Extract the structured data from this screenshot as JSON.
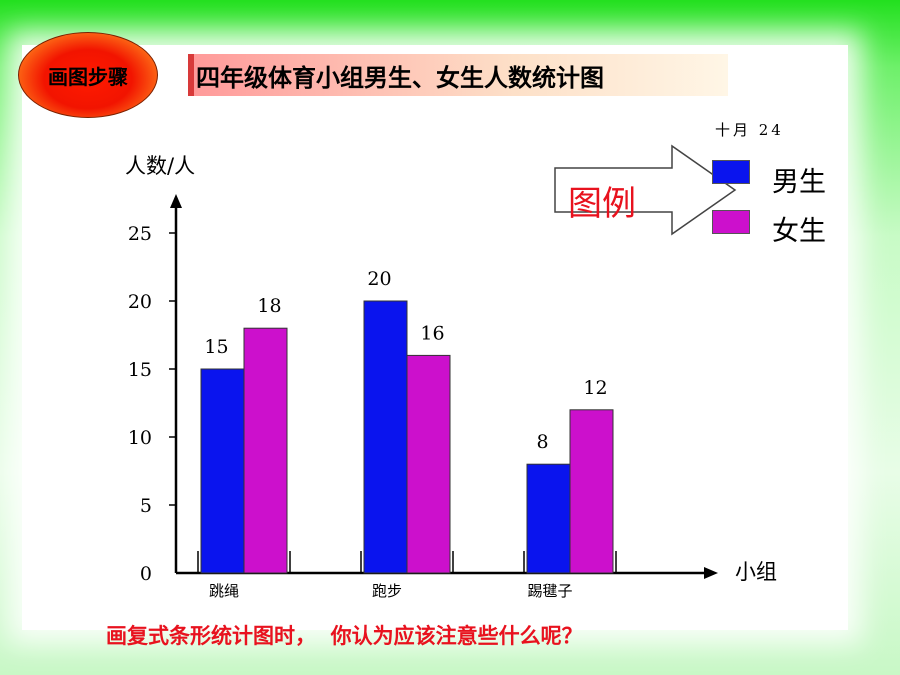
{
  "steps_button": "画图步骤",
  "date_label": "十月 24",
  "legend_title": "图例",
  "question": "画复式条形统计图时，  你认为应该注意些什么呢？",
  "colors": {
    "boys": "#0a14ee",
    "girls": "#cc10cc",
    "accent": "#e8121e"
  },
  "chart_data": {
    "type": "bar",
    "title": "四年级体育小组男生、女生人数统计图",
    "ylabel": "人数/人",
    "xlabel": "小组",
    "categories": [
      "跳绳",
      "跑步",
      "踢毽子"
    ],
    "series": [
      {
        "name": "男生",
        "values": [
          15,
          20,
          8
        ]
      },
      {
        "name": "女生",
        "values": [
          18,
          16,
          12
        ]
      }
    ],
    "data_labels": [
      [
        "15",
        "20",
        "8"
      ],
      [
        "18",
        "16",
        "12"
      ]
    ],
    "yticks": [
      "0",
      "5",
      "10",
      "15",
      "20",
      "25"
    ],
    "ytick_values": [
      0,
      5,
      10,
      15,
      20,
      25
    ],
    "ylim": [
      0,
      25
    ],
    "grid": false,
    "legend_position": "top-right"
  }
}
